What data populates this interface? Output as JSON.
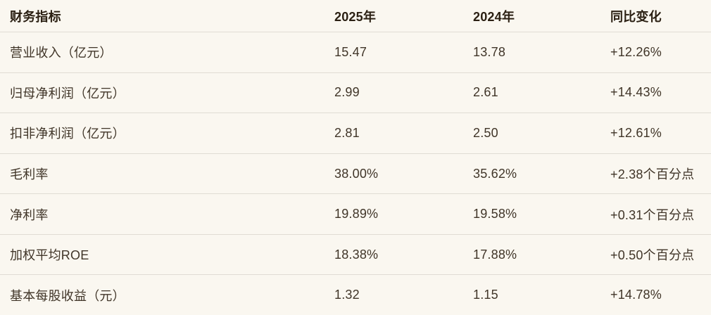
{
  "colors": {
    "background": "#faf7f0",
    "divider": "#e0dcd4",
    "header_text": "#2b2013",
    "body_text": "#403528"
  },
  "table": {
    "headers": [
      "财务指标",
      "2025年",
      "2024年",
      "同比变化"
    ],
    "rows": [
      [
        "营业收入（亿元）",
        "15.47",
        "13.78",
        "+12.26%"
      ],
      [
        "归母净利润（亿元）",
        "2.99",
        "2.61",
        "+14.43%"
      ],
      [
        "扣非净利润（亿元）",
        "2.81",
        "2.50",
        "+12.61%"
      ],
      [
        "毛利率",
        "38.00%",
        "35.62%",
        "+2.38个百分点"
      ],
      [
        "净利率",
        "19.89%",
        "19.58%",
        "+0.31个百分点"
      ],
      [
        "加权平均ROE",
        "18.38%",
        "17.88%",
        "+0.50个百分点"
      ],
      [
        "基本每股收益（元）",
        "1.32",
        "1.15",
        "+14.78%"
      ]
    ]
  },
  "chart_data": {
    "type": "table",
    "columns": [
      "财务指标",
      "2025年",
      "2024年",
      "同比变化"
    ],
    "categories": [
      "营业收入（亿元）",
      "归母净利润（亿元）",
      "扣非净利润（亿元）",
      "毛利率",
      "净利率",
      "加权平均ROE",
      "基本每股收益（元）"
    ],
    "series": [
      {
        "name": "2025年",
        "values": [
          15.47,
          2.99,
          2.81,
          38.0,
          19.89,
          18.38,
          1.32
        ]
      },
      {
        "name": "2024年",
        "values": [
          13.78,
          2.61,
          2.5,
          35.62,
          19.58,
          17.88,
          1.15
        ]
      }
    ],
    "yoy_change": [
      "+12.26%",
      "+14.43%",
      "+12.61%",
      "+2.38个百分点",
      "+0.31个百分点",
      "+0.50个百分点",
      "+14.78%"
    ]
  }
}
